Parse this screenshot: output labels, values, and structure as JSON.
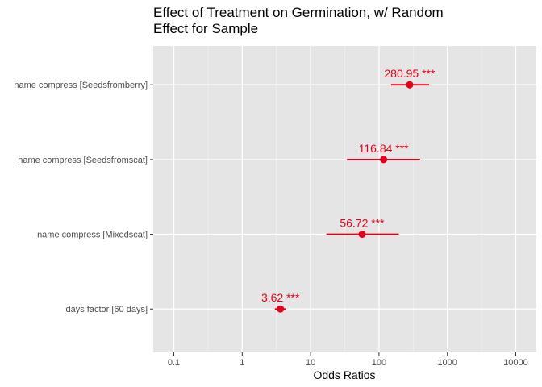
{
  "chart_data": {
    "type": "scatter",
    "title_lines": [
      "Effect of Treatment on Germination, w/ Random",
      "Effect for Sample"
    ],
    "xlabel": "Odds Ratios",
    "ylabel": "",
    "x_scale": "log10",
    "xlim": [
      0.05,
      20000
    ],
    "x_ticks": [
      0.1,
      1,
      10,
      100,
      1000,
      10000
    ],
    "x_tick_labels": [
      "0.1",
      "1",
      "10",
      "100",
      "1000",
      "10000"
    ],
    "grid": true,
    "legend": "none",
    "point_color": "#e3001b",
    "panel_color": "#e5e5e5",
    "terms": [
      {
        "term": "name compress [Seedsfromberry]",
        "estimate": 280.95,
        "ci_low": 150,
        "ci_high": 540,
        "label": "280.95 ***"
      },
      {
        "term": "name compress [Seedsfromscat]",
        "estimate": 116.84,
        "ci_low": 34,
        "ci_high": 400,
        "label": "116.84 ***"
      },
      {
        "term": "name compress [Mixedscat]",
        "estimate": 56.72,
        "ci_low": 17,
        "ci_high": 195,
        "label": "56.72 ***"
      },
      {
        "term": "days factor [60 days]",
        "estimate": 3.62,
        "ci_low": 3.0,
        "ci_high": 4.4,
        "label": "3.62 ***"
      }
    ]
  }
}
